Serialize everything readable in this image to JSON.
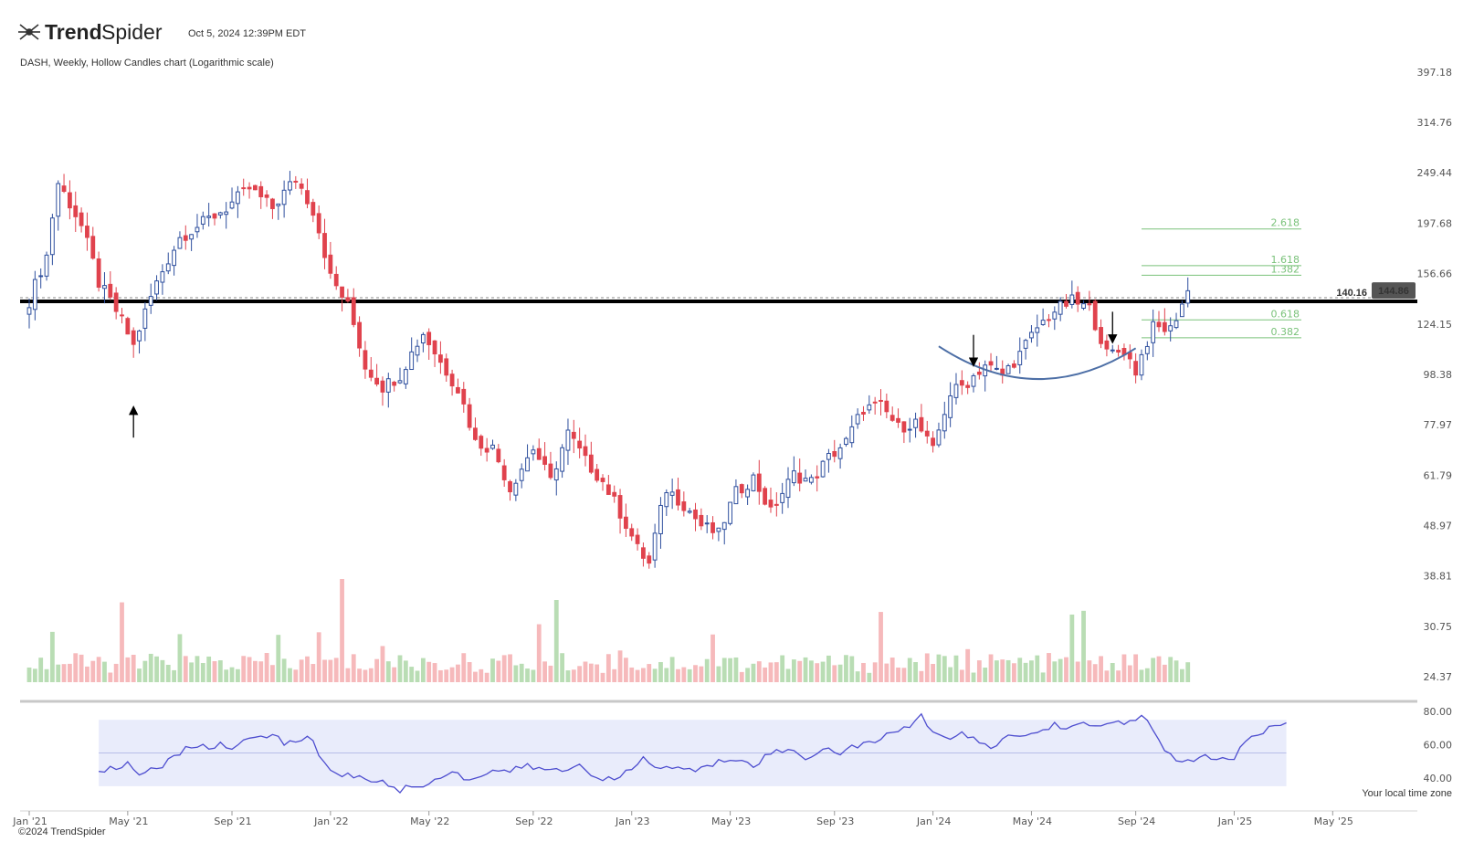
{
  "header": {
    "brand_bold": "Trend",
    "brand_light": "Spider",
    "timestamp": "Oct 5, 2024 12:39PM EDT",
    "subtitle": "DASH, Weekly, Hollow Candles chart (Logarithmic scale)"
  },
  "footer": {
    "copyright": "©2024 TrendSpider",
    "timezone_note": "Your local time zone"
  },
  "colors": {
    "up": "#2e4f9e",
    "down": "#e0424d",
    "vol_up": "#b9ddb4",
    "vol_down": "#f6b9bb",
    "rsi_line": "#4d4dcf",
    "rsi_band": "#e9ecfb",
    "fib": "#7ac27a",
    "arc": "#4d6fa6",
    "support": "#000000"
  },
  "chart_data": [
    {
      "type": "candlestick",
      "scale": "log",
      "x_ticks": [
        "Jan '21",
        "May '21",
        "Sep '21",
        "Jan '22",
        "May '22",
        "Sep '22",
        "Jan '23",
        "May '23",
        "Sep '23",
        "Jan '24",
        "May '24",
        "Sep '24",
        "Jan '25",
        "May '25"
      ],
      "y_ticks": [
        "397.18",
        "314.76",
        "249.44",
        "197.68",
        "156.66",
        "124.15",
        "98.38",
        "77.97",
        "61.79",
        "48.97",
        "38.81",
        "30.75",
        "24.37"
      ],
      "ylim": [
        22.5,
        430
      ],
      "last_price": "144.86",
      "reference_price": "140.16",
      "support_level": 137.8,
      "fib_levels": [
        {
          "label": "2.618",
          "value": 192.5
        },
        {
          "label": "1.618",
          "value": 162.5
        },
        {
          "label": "1.382",
          "value": 155.5
        },
        {
          "label": "0.618",
          "value": 126.5
        },
        {
          "label": "0.382",
          "value": 116.5
        }
      ],
      "markers": [
        {
          "type": "up-arrow",
          "week": 18
        },
        {
          "type": "down-arrow",
          "week": 163
        },
        {
          "type": "down-arrow",
          "week": 187
        }
      ],
      "arc": {
        "from_week": 157,
        "to_week": 191,
        "bottom_value": 96.5
      },
      "pivots": [
        [
          0,
          138
        ],
        [
          3,
          170
        ],
        [
          5,
          238
        ],
        [
          9,
          195
        ],
        [
          12,
          150
        ],
        [
          16,
          126
        ],
        [
          18,
          112
        ],
        [
          22,
          150
        ],
        [
          26,
          185
        ],
        [
          30,
          198
        ],
        [
          34,
          212
        ],
        [
          38,
          232
        ],
        [
          42,
          212
        ],
        [
          46,
          243
        ],
        [
          49,
          210
        ],
        [
          52,
          154
        ],
        [
          55,
          135
        ],
        [
          58,
          102
        ],
        [
          61,
          93
        ],
        [
          64,
          98
        ],
        [
          68,
          119
        ],
        [
          71,
          104
        ],
        [
          74,
          92
        ],
        [
          77,
          72
        ],
        [
          80,
          70
        ],
        [
          83,
          58
        ],
        [
          87,
          70
        ],
        [
          90,
          60
        ],
        [
          93,
          75
        ],
        [
          96,
          66
        ],
        [
          99,
          60
        ],
        [
          102,
          52
        ],
        [
          105,
          44
        ],
        [
          107,
          41
        ],
        [
          110,
          58
        ],
        [
          113,
          54
        ],
        [
          116,
          49
        ],
        [
          119,
          47
        ],
        [
          122,
          57
        ],
        [
          125,
          61
        ],
        [
          128,
          52
        ],
        [
          132,
          62
        ],
        [
          135,
          60
        ],
        [
          138,
          67
        ],
        [
          141,
          72
        ],
        [
          144,
          84
        ],
        [
          147,
          85
        ],
        [
          150,
          77
        ],
        [
          153,
          79
        ],
        [
          156,
          69
        ],
        [
          159,
          90
        ],
        [
          162,
          95
        ],
        [
          165,
          103
        ],
        [
          168,
          98
        ],
        [
          171,
          108
        ],
        [
          174,
          122
        ],
        [
          177,
          132
        ],
        [
          180,
          138
        ],
        [
          183,
          133
        ],
        [
          186,
          108
        ],
        [
          189,
          110
        ],
        [
          191,
          100
        ],
        [
          194,
          122
        ],
        [
          197,
          121
        ],
        [
          200,
          144
        ]
      ]
    },
    {
      "type": "bar",
      "series_kind": "volume"
    },
    {
      "type": "line",
      "series_kind": "rsi",
      "y_ticks": [
        "80.00",
        "60.00",
        "40.00"
      ],
      "ylim": [
        30,
        85
      ],
      "band": [
        35,
        75
      ],
      "mid": 55,
      "start_week": 12,
      "pivots": [
        [
          0,
          45
        ],
        [
          3,
          45
        ],
        [
          5,
          49
        ],
        [
          7,
          42
        ],
        [
          9,
          46
        ],
        [
          11,
          48
        ],
        [
          13,
          52
        ],
        [
          15,
          57
        ],
        [
          17,
          60
        ],
        [
          19,
          57
        ],
        [
          21,
          62
        ],
        [
          23,
          58
        ],
        [
          25,
          61
        ],
        [
          27,
          64
        ],
        [
          30,
          67
        ],
        [
          32,
          60
        ],
        [
          34,
          62
        ],
        [
          36,
          66
        ],
        [
          38,
          55
        ],
        [
          40,
          45
        ],
        [
          42,
          42
        ],
        [
          46,
          40
        ],
        [
          49,
          37
        ],
        [
          52,
          33
        ],
        [
          55,
          35
        ],
        [
          58,
          38
        ],
        [
          61,
          45
        ],
        [
          63,
          40
        ],
        [
          66,
          41
        ],
        [
          69,
          45
        ],
        [
          71,
          44
        ],
        [
          74,
          47
        ],
        [
          77,
          45
        ],
        [
          80,
          44
        ],
        [
          83,
          48
        ],
        [
          86,
          41
        ],
        [
          89,
          38
        ],
        [
          92,
          45
        ],
        [
          94,
          52
        ],
        [
          97,
          45
        ],
        [
          100,
          47
        ],
        [
          103,
          44
        ],
        [
          106,
          48
        ],
        [
          108,
          51
        ],
        [
          111,
          52
        ],
        [
          113,
          48
        ],
        [
          116,
          55
        ],
        [
          119,
          57
        ],
        [
          122,
          52
        ],
        [
          125,
          58
        ],
        [
          128,
          55
        ],
        [
          131,
          60
        ],
        [
          134,
          61
        ],
        [
          137,
          67
        ],
        [
          140,
          72
        ],
        [
          142,
          77
        ],
        [
          144,
          69
        ],
        [
          147,
          63
        ],
        [
          149,
          66
        ],
        [
          152,
          61
        ],
        [
          155,
          59
        ],
        [
          157,
          65
        ],
        [
          160,
          66
        ],
        [
          162,
          67
        ],
        [
          165,
          72
        ],
        [
          167,
          71
        ],
        [
          170,
          72
        ],
        [
          172,
          70
        ],
        [
          174,
          73
        ],
        [
          177,
          74
        ],
        [
          180,
          76
        ],
        [
          182,
          70
        ],
        [
          184,
          55
        ],
        [
          187,
          49
        ],
        [
          190,
          53
        ],
        [
          193,
          51
        ],
        [
          196,
          50
        ],
        [
          198,
          63
        ],
        [
          200,
          66
        ],
        [
          202,
          70
        ],
        [
          205,
          72
        ]
      ]
    }
  ]
}
